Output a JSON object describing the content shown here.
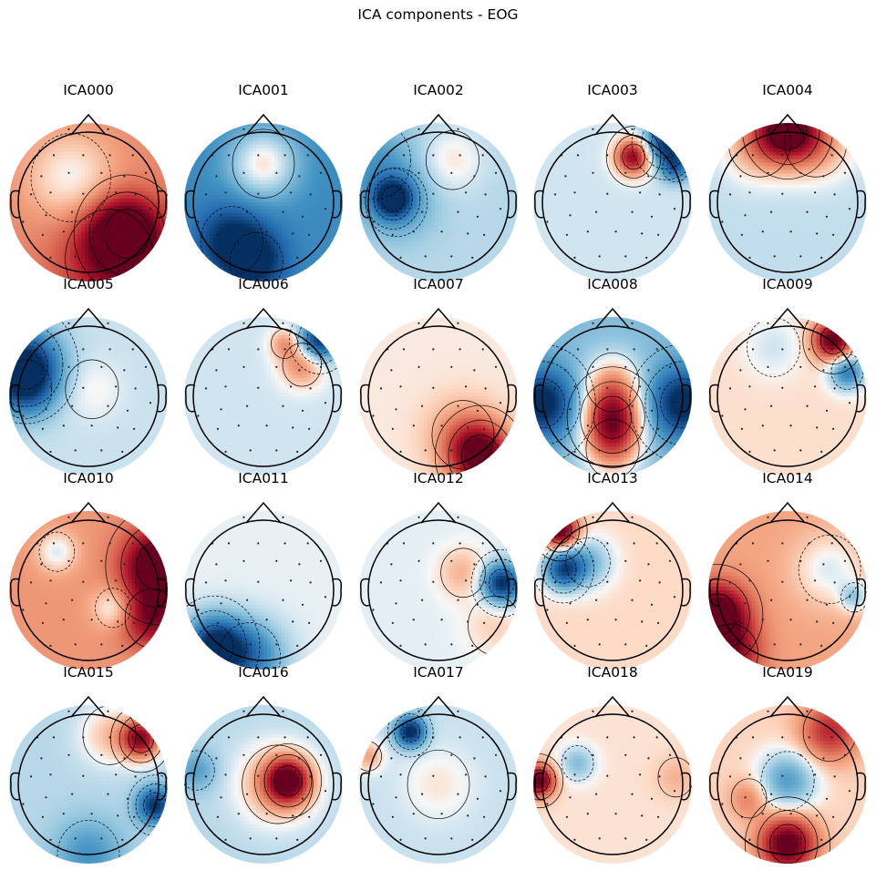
{
  "figure": {
    "title": "ICA components - EOG"
  },
  "chart_data": {
    "type": "heatmap",
    "subtype": "scalp-topography-grid",
    "title": "ICA components - EOG",
    "layout": {
      "rows": 4,
      "cols": 5
    },
    "colormap": {
      "name": "RdBu_r",
      "negative": "#053061",
      "zero": "#f7f7f7",
      "positive": "#67001f"
    },
    "sensors_per_map": 32,
    "contour_style": {
      "positive": "solid",
      "negative": "dashed"
    },
    "components": [
      {
        "name": "ICA000",
        "base": 0.35,
        "sources": [
          [
            0.55,
            -0.45,
            0.9,
            0.35
          ],
          [
            -0.25,
            0.35,
            -0.35,
            0.45
          ],
          [
            0.3,
            -0.8,
            0.5,
            0.5
          ]
        ]
      },
      {
        "name": "ICA001",
        "base": -0.55,
        "sources": [
          [
            0.0,
            0.55,
            0.6,
            0.35
          ],
          [
            -0.45,
            -0.55,
            -0.5,
            0.35
          ],
          [
            -0.1,
            -0.85,
            -0.45,
            0.3
          ]
        ]
      },
      {
        "name": "ICA002",
        "base": -0.15,
        "sources": [
          [
            -0.65,
            0.05,
            -0.85,
            0.18
          ],
          [
            -0.6,
            0.0,
            -0.35,
            0.35
          ],
          [
            0.2,
            0.6,
            0.2,
            0.3
          ],
          [
            -0.9,
            0.6,
            -0.3,
            0.4
          ]
        ]
      },
      {
        "name": "ICA003",
        "base": -0.08,
        "sources": [
          [
            0.3,
            0.65,
            1.0,
            0.18
          ],
          [
            0.75,
            0.85,
            -0.9,
            0.22
          ],
          [
            0.9,
            0.5,
            -0.6,
            0.15
          ]
        ]
      },
      {
        "name": "ICA004",
        "base": -0.12,
        "sources": [
          [
            0.0,
            1.05,
            1.0,
            0.3
          ],
          [
            -0.4,
            0.85,
            0.45,
            0.35
          ],
          [
            0.4,
            0.85,
            0.45,
            0.35
          ]
        ]
      },
      {
        "name": "ICA005",
        "base": -0.1,
        "sources": [
          [
            -0.9,
            0.45,
            -0.95,
            0.35
          ],
          [
            -0.9,
            0.1,
            -0.5,
            0.3
          ],
          [
            0.05,
            0.1,
            0.12,
            0.3
          ]
        ]
      },
      {
        "name": "ICA006",
        "base": -0.08,
        "sources": [
          [
            0.8,
            0.8,
            -0.95,
            0.2
          ],
          [
            0.55,
            0.45,
            0.45,
            0.22
          ],
          [
            0.3,
            0.75,
            0.35,
            0.15
          ]
        ]
      },
      {
        "name": "ICA007",
        "base": 0.04,
        "sources": [
          [
            0.6,
            -0.85,
            1.0,
            0.3
          ],
          [
            0.35,
            -0.55,
            0.3,
            0.35
          ]
        ]
      },
      {
        "name": "ICA008",
        "base": -0.3,
        "sources": [
          [
            0.0,
            -0.3,
            1.0,
            0.3
          ],
          [
            0.0,
            -0.75,
            0.6,
            0.3
          ],
          [
            0.0,
            0.2,
            0.5,
            0.3
          ],
          [
            -1.0,
            -0.1,
            -0.8,
            0.35
          ],
          [
            1.0,
            -0.1,
            -0.8,
            0.35
          ]
        ]
      },
      {
        "name": "ICA009",
        "base": 0.07,
        "sources": [
          [
            0.65,
            0.8,
            1.0,
            0.2
          ],
          [
            0.85,
            0.35,
            -0.7,
            0.18
          ],
          [
            -0.2,
            0.7,
            -0.15,
            0.3
          ]
        ]
      },
      {
        "name": "ICA010",
        "base": 0.3,
        "sources": [
          [
            1.0,
            0.35,
            1.0,
            0.35
          ],
          [
            0.9,
            -0.4,
            0.6,
            0.3
          ],
          [
            -0.45,
            0.55,
            -0.35,
            0.2
          ],
          [
            0.35,
            -0.25,
            -0.35,
            0.2
          ]
        ]
      },
      {
        "name": "ICA011",
        "base": -0.03,
        "sources": [
          [
            -0.7,
            -0.8,
            -1.0,
            0.3
          ],
          [
            -0.2,
            -0.95,
            -0.6,
            0.35
          ]
        ]
      },
      {
        "name": "ICA012",
        "base": -0.04,
        "sources": [
          [
            0.9,
            0.1,
            -1.0,
            0.2
          ],
          [
            0.35,
            0.25,
            0.25,
            0.25
          ],
          [
            0.8,
            -0.5,
            0.15,
            0.3
          ]
        ]
      },
      {
        "name": "ICA013",
        "base": 0.08,
        "sources": [
          [
            -0.75,
            0.85,
            1.0,
            0.18
          ],
          [
            -0.7,
            0.3,
            -0.9,
            0.2
          ],
          [
            -0.35,
            0.4,
            -0.4,
            0.25
          ]
        ]
      },
      {
        "name": "ICA014",
        "base": 0.25,
        "sources": [
          [
            -1.0,
            -0.35,
            1.0,
            0.3
          ],
          [
            -0.8,
            -0.9,
            0.6,
            0.3
          ],
          [
            0.6,
            0.3,
            -0.3,
            0.35
          ],
          [
            0.95,
            -0.1,
            -0.4,
            0.15
          ]
        ]
      },
      {
        "name": "ICA015",
        "base": -0.15,
        "sources": [
          [
            0.75,
            0.65,
            1.0,
            0.2
          ],
          [
            0.3,
            0.7,
            0.3,
            0.3
          ],
          [
            0.95,
            -0.3,
            -0.85,
            0.18
          ],
          [
            0.0,
            -1.0,
            -0.35,
            0.35
          ]
        ]
      },
      {
        "name": "ICA016",
        "base": -0.15,
        "sources": [
          [
            0.35,
            0.05,
            1.0,
            0.22
          ],
          [
            0.2,
            0.0,
            0.45,
            0.4
          ],
          [
            -0.95,
            0.2,
            -0.3,
            0.2
          ]
        ]
      },
      {
        "name": "ICA017",
        "base": -0.1,
        "sources": [
          [
            -0.4,
            0.75,
            -1.0,
            0.15
          ],
          [
            0.0,
            0.0,
            0.15,
            0.35
          ],
          [
            -1.0,
            0.4,
            0.35,
            0.15
          ]
        ]
      },
      {
        "name": "ICA018",
        "base": 0.06,
        "sources": [
          [
            -1.05,
            0.05,
            1.0,
            0.16
          ],
          [
            -0.5,
            0.3,
            -0.35,
            0.18
          ],
          [
            0.9,
            0.1,
            0.15,
            0.2
          ]
        ]
      },
      {
        "name": "ICA019",
        "base": 0.1,
        "sources": [
          [
            0.0,
            -0.85,
            1.0,
            0.28
          ],
          [
            0.0,
            0.05,
            -0.55,
            0.3
          ],
          [
            0.6,
            0.75,
            0.6,
            0.3
          ],
          [
            -0.55,
            -0.2,
            0.3,
            0.2
          ]
        ]
      }
    ],
    "sensor_layout": [
      [
        -0.3,
        1.12
      ],
      [
        0.3,
        1.12
      ],
      [
        -0.78,
        0.72
      ],
      [
        -0.53,
        0.72
      ],
      [
        -0.08,
        0.72
      ],
      [
        0.33,
        0.72
      ],
      [
        0.68,
        0.72
      ],
      [
        -0.72,
        0.4
      ],
      [
        -0.3,
        0.45
      ],
      [
        0.2,
        0.45
      ],
      [
        0.55,
        0.4
      ],
      [
        0.88,
        0.45
      ],
      [
        -0.88,
        0.12
      ],
      [
        -0.58,
        0.15
      ],
      [
        -0.08,
        0.13
      ],
      [
        0.42,
        0.15
      ],
      [
        0.72,
        0.12
      ],
      [
        -0.65,
        -0.2
      ],
      [
        -0.25,
        -0.15
      ],
      [
        0.3,
        -0.15
      ],
      [
        0.6,
        -0.22
      ],
      [
        0.95,
        -0.1
      ],
      [
        -1.0,
        -0.3
      ],
      [
        -0.7,
        -0.5
      ],
      [
        -0.38,
        -0.45
      ],
      [
        0.05,
        -0.45
      ],
      [
        0.45,
        -0.48
      ],
      [
        0.7,
        -0.5
      ],
      [
        -0.58,
        -0.85
      ],
      [
        -0.2,
        -0.83
      ],
      [
        0.2,
        -0.83
      ],
      [
        0.52,
        -0.85
      ]
    ]
  }
}
